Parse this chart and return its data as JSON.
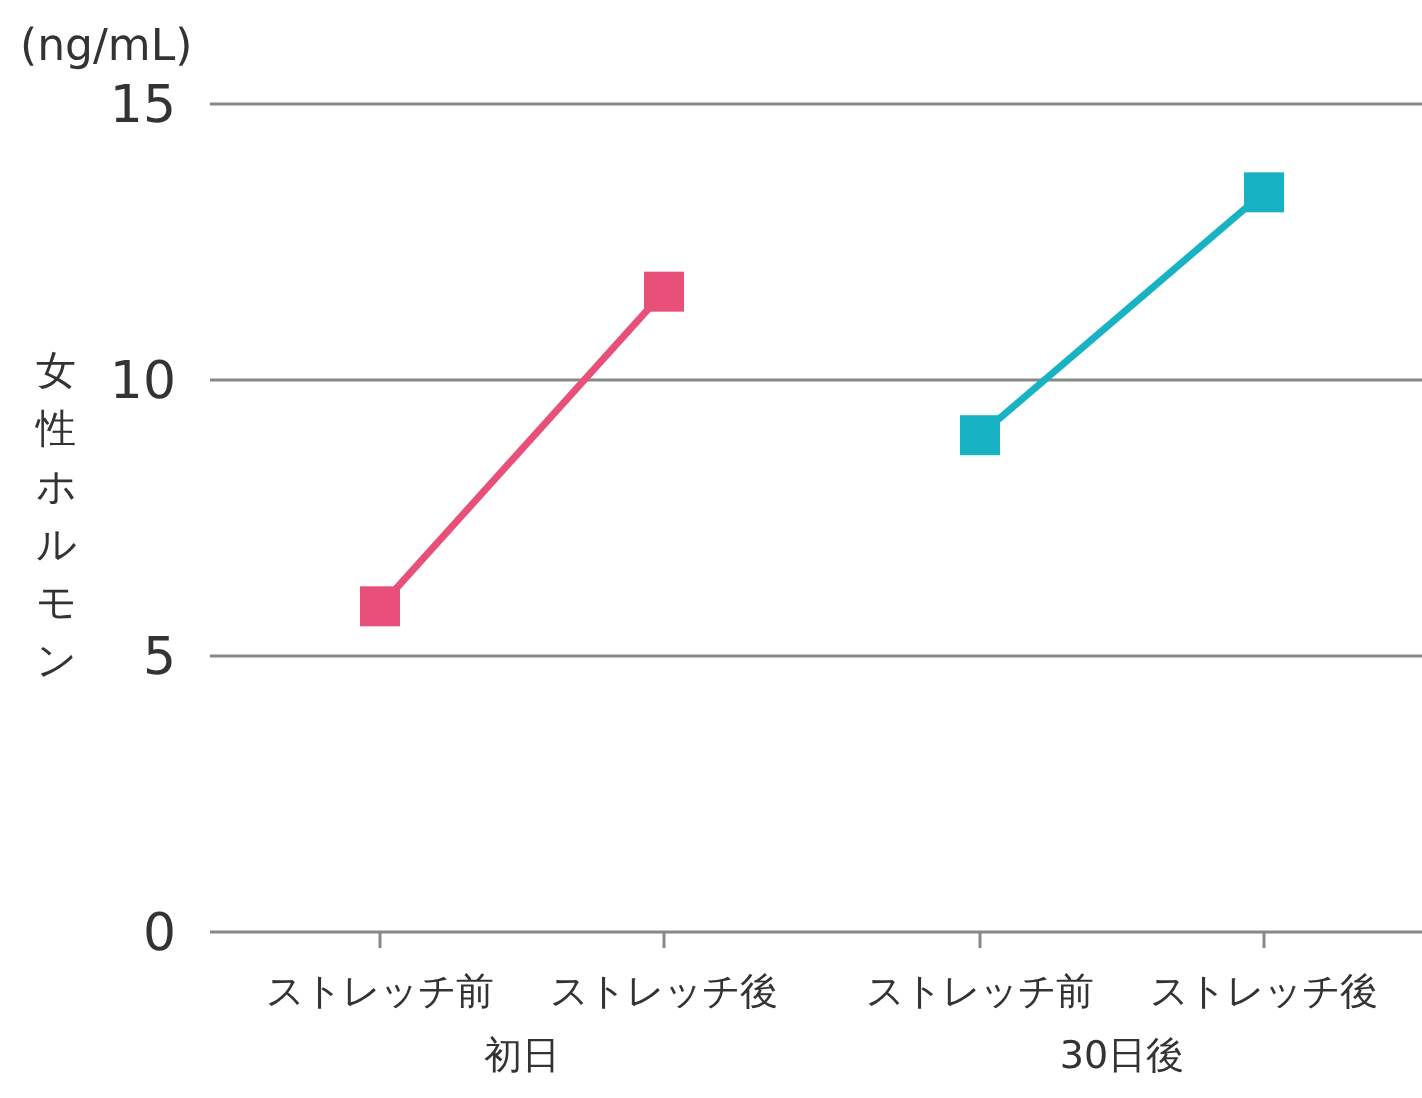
{
  "chart_data": {
    "type": "line",
    "ylabel": "女性ホルモン",
    "annotations": [
      "(ng/mL)",
      "初日",
      "30日後"
    ],
    "categories": [
      "ストレッチ前",
      "ストレッチ後",
      "ストレッチ前",
      "ストレッチ後"
    ],
    "series": [
      {
        "color": "#e8507a",
        "values": [
          5.9,
          11.6,
          null,
          null
        ]
      },
      {
        "color": "#17b3c4",
        "values": [
          null,
          null,
          9.0,
          13.4
        ]
      }
    ],
    "ylim": [
      0,
      15
    ],
    "yticks": [
      0,
      5,
      10,
      15
    ],
    "grid": "y",
    "marker": "square",
    "line_style": "solid"
  }
}
